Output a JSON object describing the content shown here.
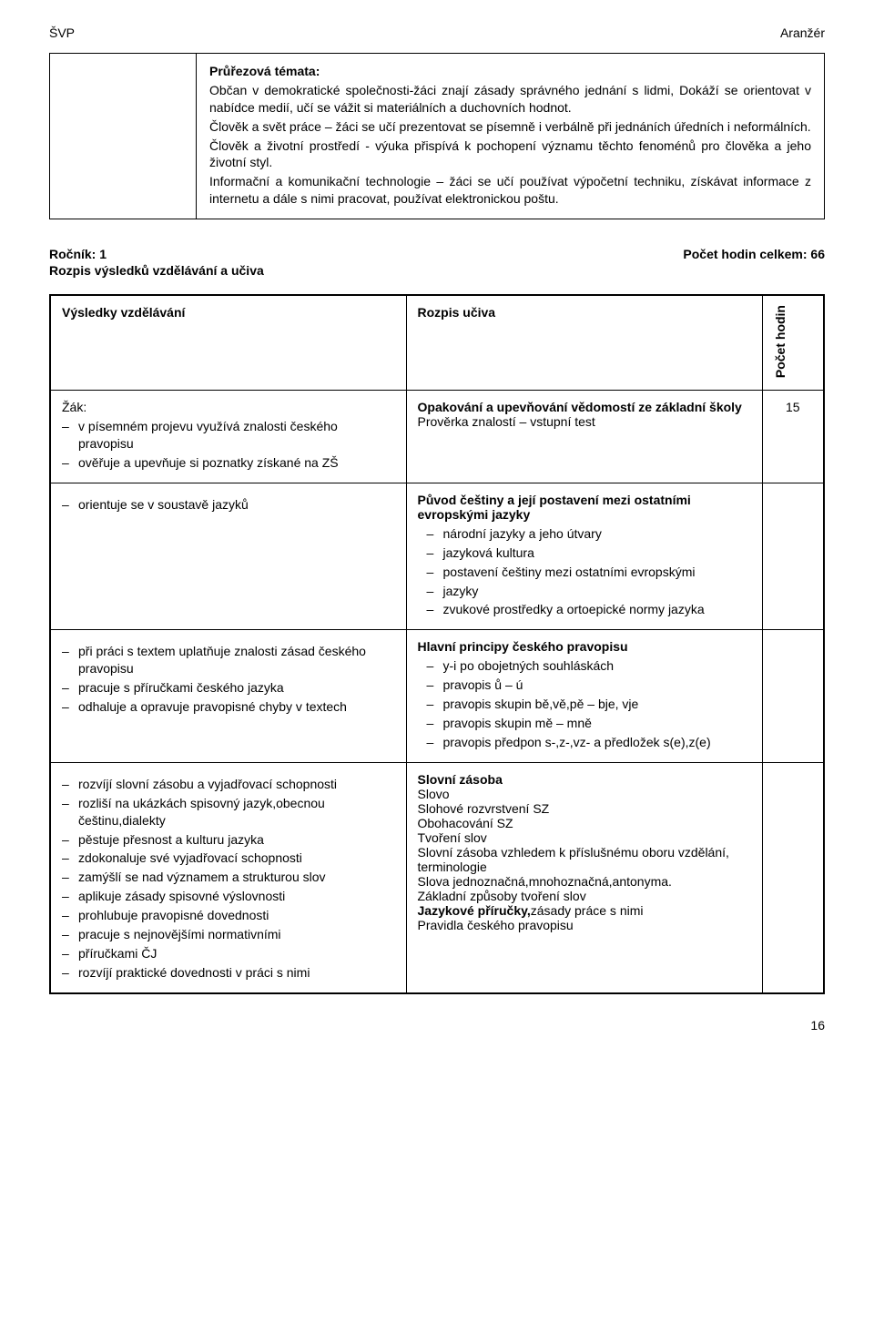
{
  "header": {
    "left": "ŠVP",
    "right": "Aranžér"
  },
  "box": {
    "title": "Průřezová témata:",
    "p1": "Občan v demokratické společnosti-žáci znají zásady správného jednání s lidmi, Dokáží se orientovat v nabídce medií, učí se vážit si materiálních a duchovních hodnot.",
    "p2": "Člověk a svět práce – žáci se učí prezentovat se písemně i verbálně při jednáních úředních i neformálních.",
    "p3": "Člověk a životní prostředí -  výuka přispívá k pochopení významu těchto fenoménů pro  člověka a jeho životní styl.",
    "p4": "Informační a komunikační technologie – žáci se učí používat výpočetní techniku, získávat informace z internetu a dále s nimi pracovat, používat elektronickou poštu."
  },
  "section": {
    "left": "Ročník: 1",
    "right": "Počet hodin celkem: 66",
    "sub": "Rozpis výsledků vzdělávání a učiva"
  },
  "table": {
    "head_a": "Výsledky vzdělávání",
    "head_b": "Rozpis učiva",
    "head_c1": "Počet",
    "head_c2": "hodin",
    "rows": [
      {
        "a_lead": "Žák:",
        "a_items": [
          "v písemném projevu využívá znalosti českého pravopisu",
          "ověřuje a upevňuje si poznatky získané na ZŠ"
        ],
        "b_bold": "Opakování a upevňování vědomostí ze základní školy",
        "b_plain": "Prověrka znalostí – vstupní test",
        "b_items": [],
        "hours": "15"
      },
      {
        "a_lead": "",
        "a_items": [
          "orientuje se v soustavě jazyků"
        ],
        "b_bold": "Původ češtiny a její postavení mezi ostatními evropskými jazyky",
        "b_plain": "",
        "b_items": [
          "národní jazyky a jeho útvary",
          "jazyková kultura",
          "postavení češtiny mezi ostatními evropskými",
          "jazyky",
          "zvukové prostředky a ortoepické normy jazyka"
        ],
        "hours": ""
      },
      {
        "a_lead": "",
        "a_items": [
          "při práci s textem uplatňuje znalosti zásad českého pravopisu",
          "pracuje s příručkami českého jazyka",
          "odhaluje a opravuje pravopisné chyby v textech"
        ],
        "b_bold": "Hlavní principy českého pravopisu",
        "b_plain": "",
        "b_items": [
          "y-i po obojetných souhláskách",
          "pravopis ů – ú",
          "pravopis skupin bě,vě,pě – bje, vje",
          "pravopis skupin mě – mně",
          "pravopis předpon s-,z-,vz- a předložek s(e),z(e)"
        ],
        "hours": ""
      },
      {
        "a_lead": "",
        "a_items": [
          "rozvíjí slovní zásobu a vyjadřovací schopnosti",
          "rozliší na ukázkách spisovný jazyk,obecnou češtinu,dialekty",
          "pěstuje přesnost a kulturu jazyka",
          "zdokonaluje své vyjadřovací schopnosti",
          "zamýšlí se nad významem a strukturou slov",
          "aplikuje zásady spisovné výslovnosti",
          "prohlubuje pravopisné dovednosti",
          "pracuje s nejnovějšími normativními",
          "příručkami ČJ",
          "rozvíjí praktické dovednosti v práci s nimi"
        ],
        "b_bold": "Slovní zásoba",
        "b_plain_lines": [
          "Slovo",
          "Slohové rozvrstvení SZ",
          "Obohacování SZ",
          "Tvoření slov",
          "Slovní zásoba vzhledem k příslušnému oboru vzdělání, terminologie",
          "Slova jednoznačná,mnohoznačná,antonyma.",
          "Základní způsoby tvoření slov"
        ],
        "b_bold2": "Jazykové příručky,",
        "b_bold2_tail": "zásady práce s nimi",
        "b_tail": "Pravidla českého pravopisu",
        "b_items": [],
        "hours": ""
      }
    ]
  },
  "pageNumber": "16"
}
